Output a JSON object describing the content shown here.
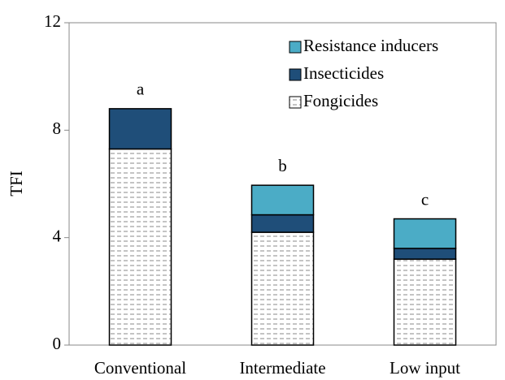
{
  "chart_data": {
    "type": "stacked_bar",
    "y_label": "TFI",
    "categories": [
      "Conventional",
      "Intermediate",
      "Low input"
    ],
    "series": [
      {
        "name": "Fongicides",
        "color": "#ffffff",
        "pattern": "dashes",
        "values": [
          7.3,
          4.2,
          3.2
        ]
      },
      {
        "name": "Insecticides",
        "color": "#1f4e79",
        "values": [
          1.5,
          0.65,
          0.4
        ]
      },
      {
        "name": "Resistance inducers",
        "color": "#4bacc6",
        "values": [
          0,
          1.1,
          1.1
        ]
      }
    ],
    "annotations": [
      "a",
      "b",
      "c"
    ],
    "ylim": [
      0,
      12
    ],
    "yticks": [
      0,
      4,
      8,
      12
    ]
  }
}
